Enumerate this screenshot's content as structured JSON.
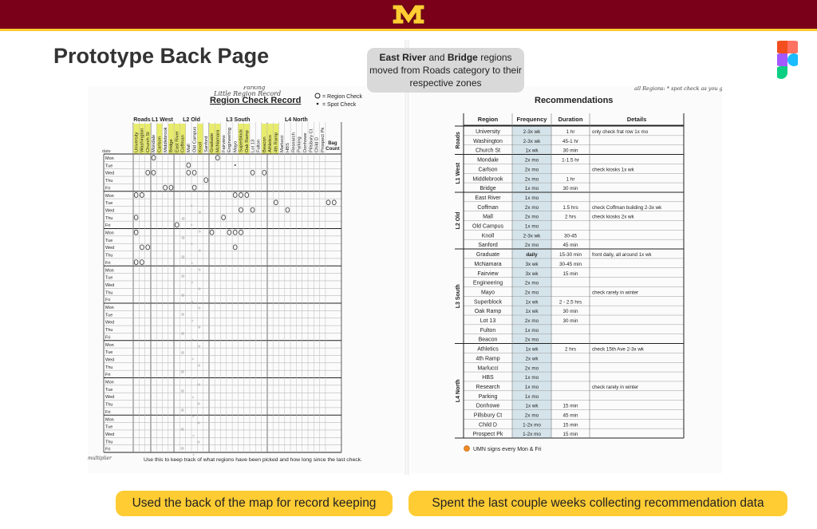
{
  "brand": {
    "logo_letter": "M",
    "primary_color": "#7a0019",
    "accent_color": "#ffcc33"
  },
  "title": "Prototype Back Page",
  "callout": {
    "part1": "East River",
    "part2": " and ",
    "part3": "Bridge",
    "part4": " regions moved from Roads category to their respective zones"
  },
  "captions": {
    "left": "Used the back of the map for record keeping",
    "right": "Spent the last couple weeks collecting recommendation data"
  },
  "left_sheet": {
    "title": "Region Check Record",
    "handwritten_title": "Little Region Record",
    "handwritten_title_above": "Parking",
    "legend_region": "= Region Check",
    "legend_spot": "= Spot Check",
    "date_label": "date",
    "groups": [
      {
        "label": "Roads",
        "cols": [
          "University",
          "Washington",
          "Church St"
        ]
      },
      {
        "label": "L1 West",
        "cols": [
          "Mondale",
          "Carlson",
          "Middlebrook",
          "Bridge"
        ]
      },
      {
        "label": "L2 Old",
        "cols": [
          "East River",
          "Coffman",
          "Mall",
          "Old Campus",
          "Knoll",
          "Sanford"
        ]
      },
      {
        "label": "L3 South",
        "cols": [
          "Graduate",
          "McNamara",
          "Fairview",
          "Engineering",
          "Mayo",
          "Superblock",
          "Oak Ramp",
          "Lot 13",
          "Fulton",
          "Beacon"
        ]
      },
      {
        "label": "L4 North",
        "cols": [
          "Athletics",
          "4th Ramp",
          "Marlucci",
          "HBS",
          "Research",
          "Parking",
          "Donhowe",
          "Pillsbury Ct",
          "Child D",
          "Prospect Pk"
        ]
      }
    ],
    "bag_count_label": "Bag Count",
    "days": [
      "Mon",
      "Tue",
      "Wed",
      "Thu",
      "Fri"
    ],
    "footer": "Use this to keep track of what regions have been picked and how long since the last check.",
    "footer_hand": "multiplier"
  },
  "right_sheet": {
    "title": "Recommendations",
    "headers": [
      "Region",
      "Frequency",
      "Duration",
      "Details"
    ],
    "hand_note_top": "all Regions: * spot check as you go",
    "rows": [
      {
        "zone": "Roads",
        "region": "University",
        "freq": "2-3x wk",
        "dur": "1 hr",
        "details": "only check frat row 1x mo"
      },
      {
        "zone": "Roads",
        "region": "Washington",
        "freq": "2-3x wk",
        "dur": "45-1 hr",
        "details": ""
      },
      {
        "zone": "Roads",
        "region": "Church St",
        "freq": "1x wk",
        "dur": "30 min",
        "details": ""
      },
      {
        "zone": "L1 West",
        "region": "Mondale",
        "freq": "2x mo",
        "dur": "1-1.5 hr",
        "details": ""
      },
      {
        "zone": "L1 West",
        "region": "Carlson",
        "freq": "2x mo",
        "dur": "",
        "details": "check kiosks 1x wk"
      },
      {
        "zone": "L1 West",
        "region": "Middlebrook",
        "freq": "2x mo",
        "dur": "1 hr",
        "details": ""
      },
      {
        "zone": "L1 West",
        "region": "Bridge",
        "freq": "1x mo",
        "dur": "30 min",
        "details": ""
      },
      {
        "zone": "L2 Old",
        "region": "East River",
        "freq": "1x mo",
        "dur": "",
        "details": ""
      },
      {
        "zone": "L2 Old",
        "region": "Coffman",
        "freq": "2x mo",
        "dur": "1.5 hrs",
        "details": "check Coffman building 2-3x wk"
      },
      {
        "zone": "L2 Old",
        "region": "Mall",
        "freq": "2x mo",
        "dur": "2 hrs",
        "details": "check kiosks 2x wk"
      },
      {
        "zone": "L2 Old",
        "region": "Old Campus",
        "freq": "1x mo",
        "dur": "",
        "details": ""
      },
      {
        "zone": "L2 Old",
        "region": "Knoll",
        "freq": "2-3x wk",
        "dur": "30-45",
        "details": ""
      },
      {
        "zone": "L2 Old",
        "region": "Sanford",
        "freq": "2x mo",
        "dur": "45 min",
        "details": ""
      },
      {
        "zone": "L3 South",
        "region": "Graduate",
        "freq": "daily",
        "dur": "15-30 min",
        "details": "front daily, all around 1x wk"
      },
      {
        "zone": "L3 South",
        "region": "McNamara",
        "freq": "3x wk",
        "dur": "30-45 min",
        "details": ""
      },
      {
        "zone": "L3 South",
        "region": "Fairview",
        "freq": "3x wk",
        "dur": "15 min",
        "details": ""
      },
      {
        "zone": "L3 South",
        "region": "Engineering",
        "freq": "2x mo",
        "dur": "",
        "details": ""
      },
      {
        "zone": "L3 South",
        "region": "Mayo",
        "freq": "2x mo",
        "dur": "",
        "details": "check rarely in winter"
      },
      {
        "zone": "L3 South",
        "region": "Superblock",
        "freq": "1x wk",
        "dur": "2 - 2.5 hrs",
        "details": ""
      },
      {
        "zone": "L3 South",
        "region": "Oak Ramp",
        "freq": "1x wk",
        "dur": "30 min",
        "details": ""
      },
      {
        "zone": "L3 South",
        "region": "Lot 13",
        "freq": "2x mo",
        "dur": "30 min",
        "details": ""
      },
      {
        "zone": "L3 South",
        "region": "Fulton",
        "freq": "1x mo",
        "dur": "",
        "details": ""
      },
      {
        "zone": "L3 South",
        "region": "Beacon",
        "freq": "2x mo",
        "dur": "",
        "details": ""
      },
      {
        "zone": "L4 North",
        "region": "Athletics",
        "freq": "1x wk",
        "dur": "2 hrs",
        "details": "check 15th Ave 2-3x wk"
      },
      {
        "zone": "L4 North",
        "region": "4th Ramp",
        "freq": "2x wk",
        "dur": "",
        "details": ""
      },
      {
        "zone": "L4 North",
        "region": "Marlucci",
        "freq": "2x mo",
        "dur": "",
        "details": ""
      },
      {
        "zone": "L4 North",
        "region": "HBS",
        "freq": "1x mo",
        "dur": "",
        "details": ""
      },
      {
        "zone": "L4 North",
        "region": "Research",
        "freq": "1x mo",
        "dur": "",
        "details": "check rarely in winter"
      },
      {
        "zone": "L4 North",
        "region": "Parking",
        "freq": "1x mo",
        "dur": "",
        "details": ""
      },
      {
        "zone": "L4 North",
        "region": "Donhowe",
        "freq": "1x wk",
        "dur": "15 min",
        "details": ""
      },
      {
        "zone": "L4 North",
        "region": "Pillsbury Ct",
        "freq": "2x mo",
        "dur": "45 min",
        "details": ""
      },
      {
        "zone": "L4 North",
        "region": "Child D",
        "freq": "1-2x mo",
        "dur": "15 min",
        "details": ""
      },
      {
        "zone": "L4 North",
        "region": "Prospect Pk",
        "freq": "1-2x mo",
        "dur": "15 min",
        "details": ""
      }
    ],
    "footer": "UMN signs every Mon & Fri"
  }
}
